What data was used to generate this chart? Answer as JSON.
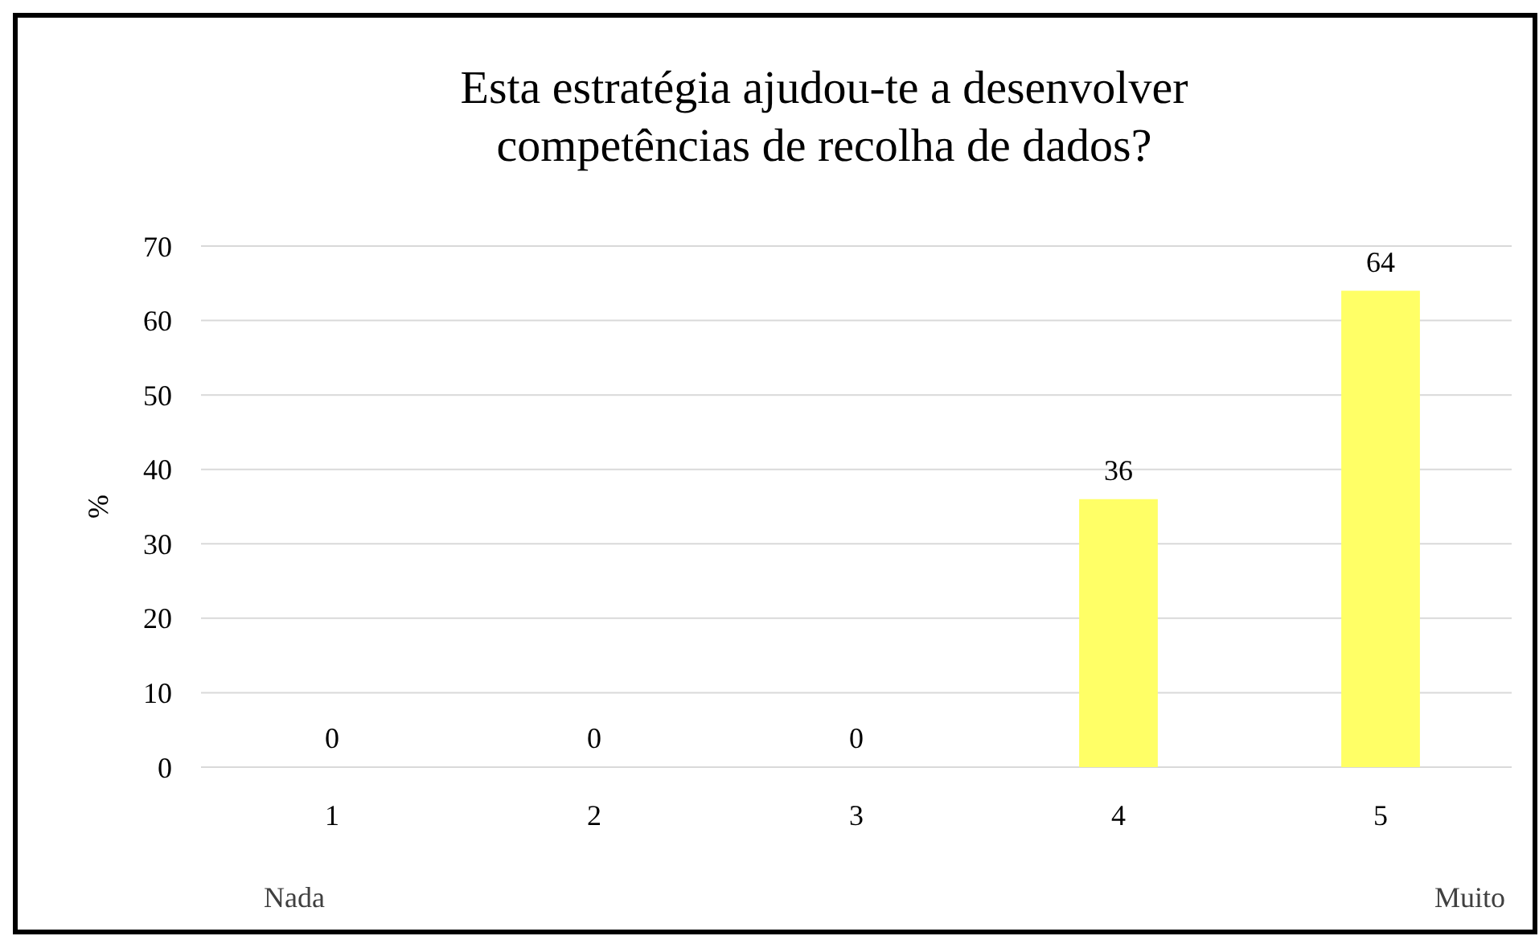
{
  "chart_data": {
    "type": "bar",
    "title": "Esta estratégia ajudou-te a desenvolver competências de recolha de dados?",
    "ylabel": "%",
    "categories": [
      "1",
      "2",
      "3",
      "4",
      "5"
    ],
    "values": [
      0,
      0,
      0,
      36,
      64
    ],
    "color": "#ffff66",
    "data_labels": true,
    "ylim": [
      0,
      70
    ],
    "yticks": [
      0,
      10,
      20,
      30,
      40,
      50,
      60,
      70
    ],
    "grid": "y",
    "annotations": [
      "Nada",
      "Muito"
    ]
  }
}
